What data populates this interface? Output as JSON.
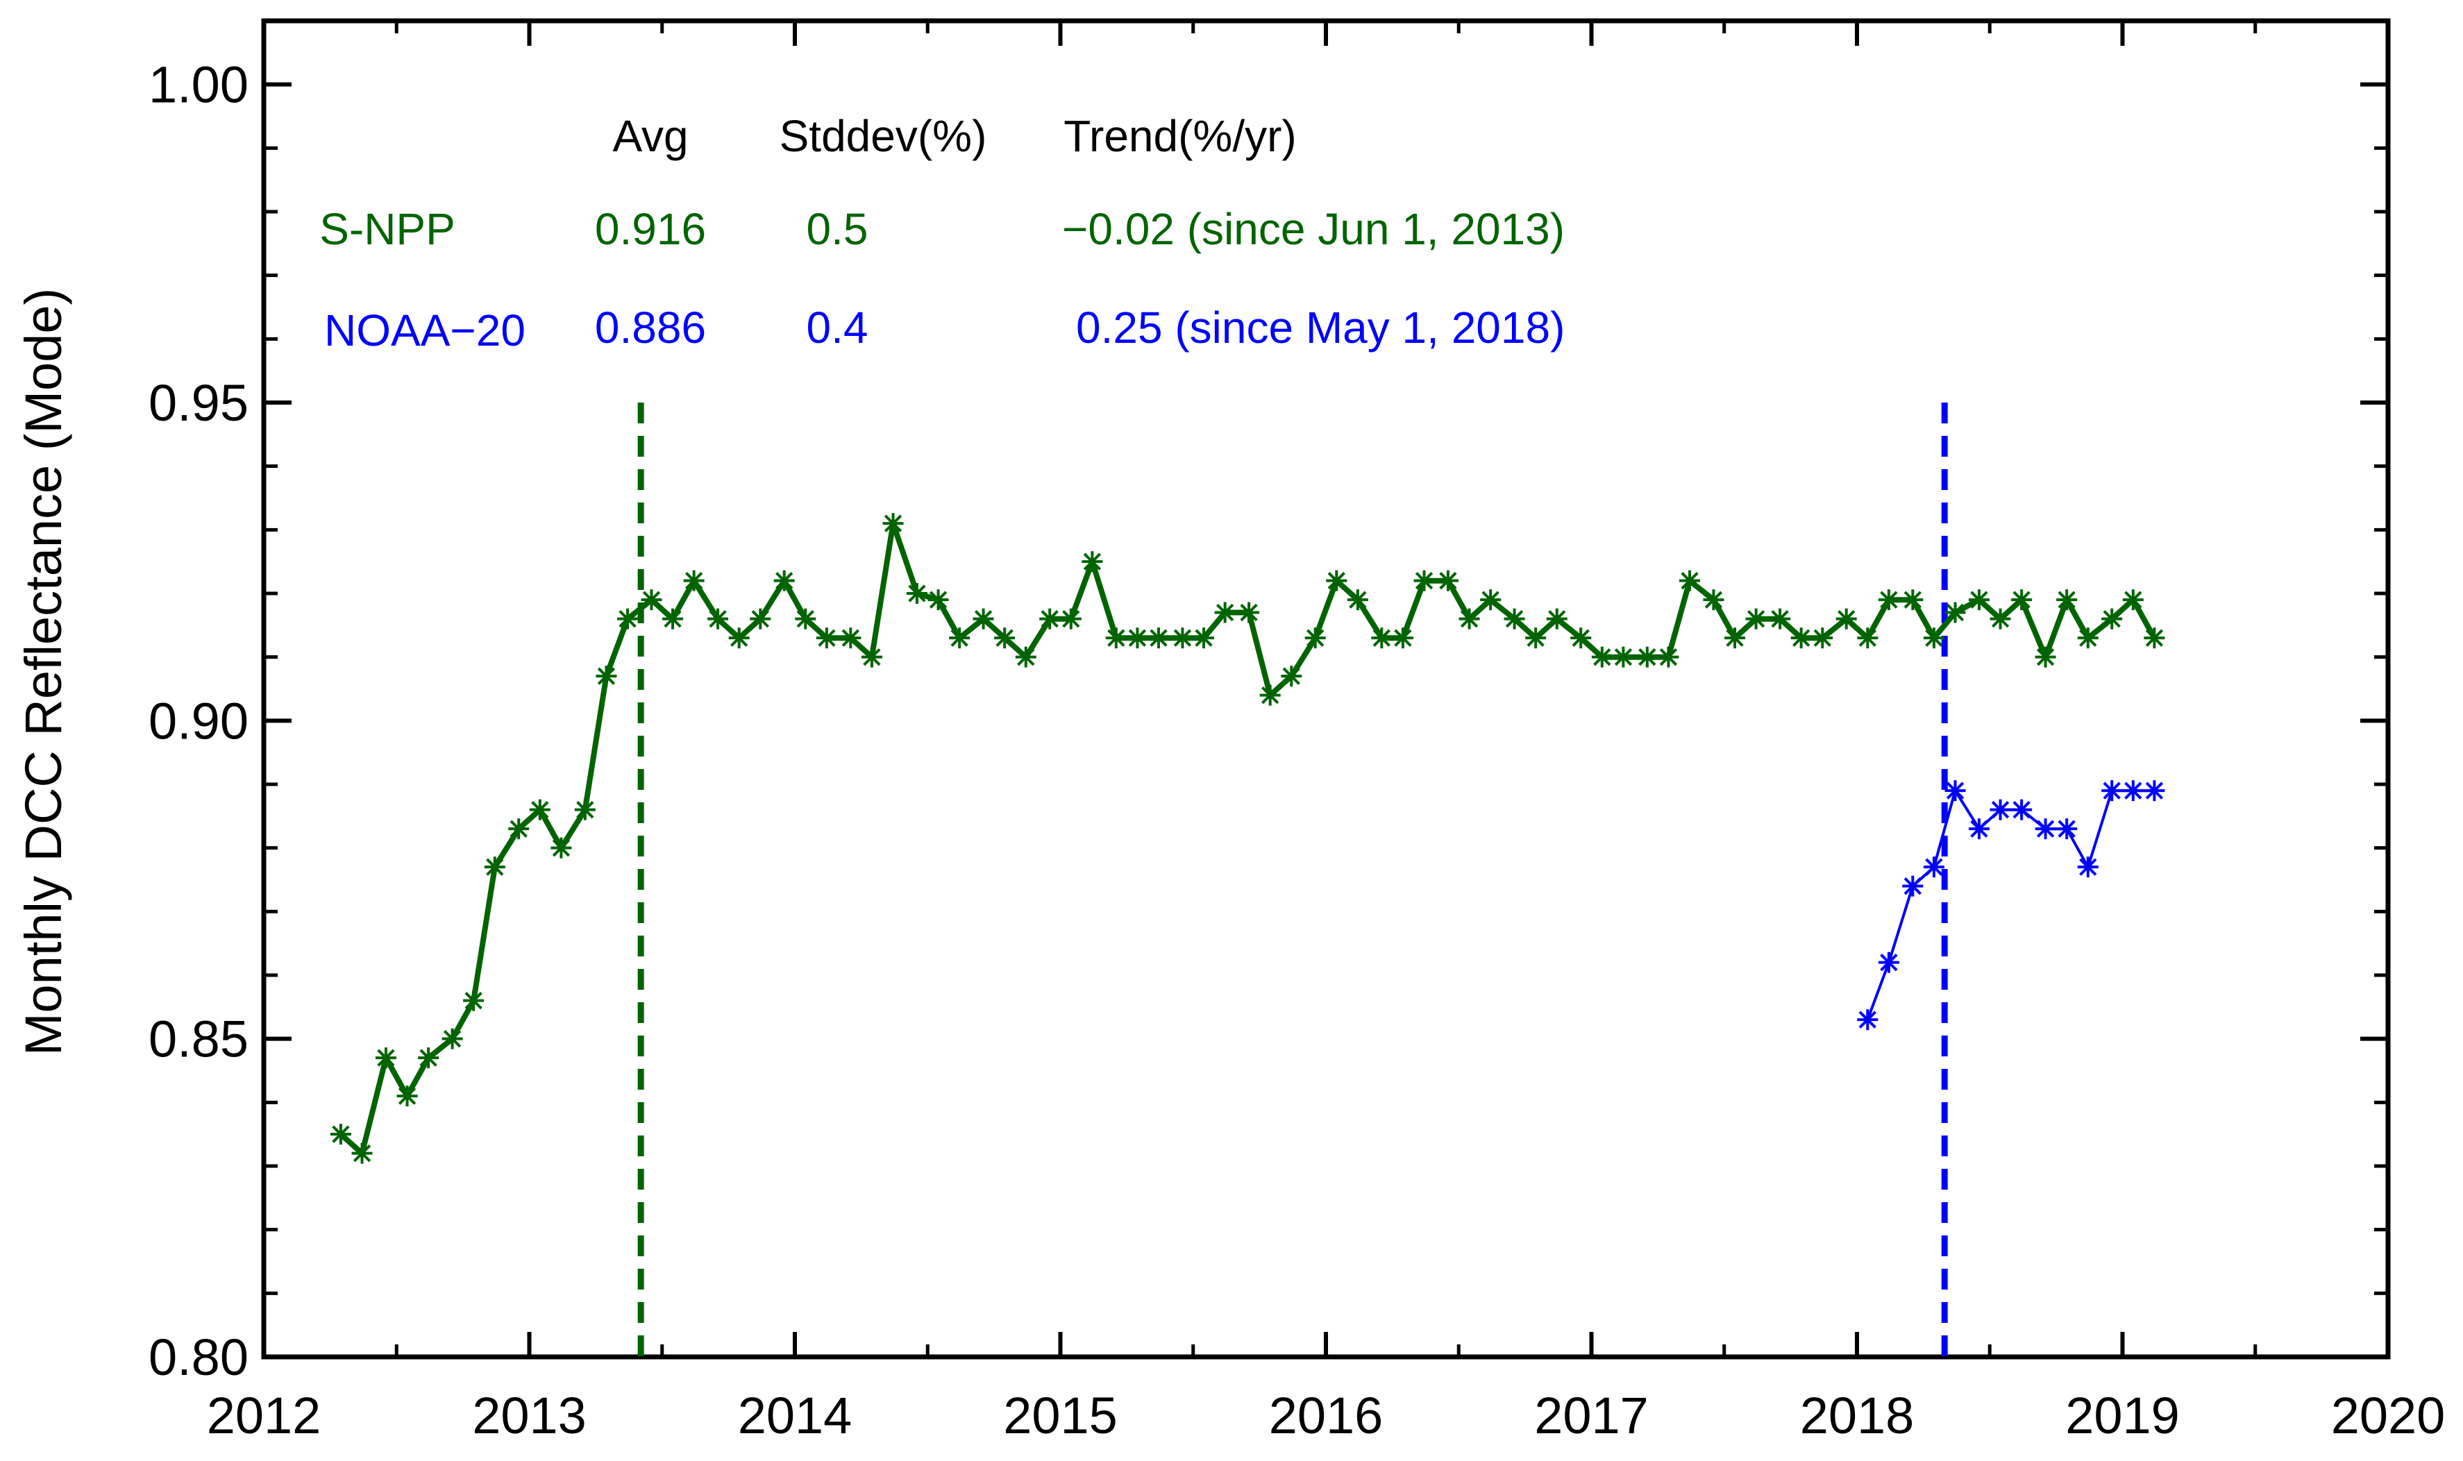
{
  "chart_data": {
    "type": "line",
    "title": "",
    "xlabel": "",
    "ylabel": "Monthly DCC Reflectance (Mode)",
    "xlim": [
      2012,
      2020
    ],
    "ylim": [
      0.8,
      1.01
    ],
    "x_ticks": [
      2012,
      2013,
      2014,
      2015,
      2016,
      2017,
      2018,
      2019,
      2020
    ],
    "x_tick_labels": [
      "2012",
      "2013",
      "2014",
      "2015",
      "2016",
      "2017",
      "2018",
      "2019",
      "2020"
    ],
    "y_ticks": [
      0.8,
      0.85,
      0.9,
      0.95,
      1.0
    ],
    "y_tick_labels": [
      "0.80",
      "0.85",
      "0.90",
      "0.95",
      "1.00"
    ],
    "grid": false,
    "series": [
      {
        "name": "S-NPP",
        "color": "#006400",
        "marker": "asterisk",
        "x": [
          2012.29,
          2012.37,
          2012.46,
          2012.54,
          2012.62,
          2012.71,
          2012.79,
          2012.87,
          2012.96,
          2013.04,
          2013.12,
          2013.21,
          2013.29,
          2013.37,
          2013.46,
          2013.54,
          2013.62,
          2013.71,
          2013.79,
          2013.87,
          2013.96,
          2014.04,
          2014.12,
          2014.21,
          2014.29,
          2014.37,
          2014.46,
          2014.54,
          2014.62,
          2014.71,
          2014.79,
          2014.87,
          2014.96,
          2015.04,
          2015.12,
          2015.21,
          2015.29,
          2015.37,
          2015.46,
          2015.54,
          2015.62,
          2015.71,
          2015.79,
          2015.87,
          2015.96,
          2016.04,
          2016.12,
          2016.21,
          2016.29,
          2016.37,
          2016.46,
          2016.54,
          2016.62,
          2016.71,
          2016.79,
          2016.87,
          2016.96,
          2017.04,
          2017.12,
          2017.21,
          2017.29,
          2017.37,
          2017.46,
          2017.54,
          2017.62,
          2017.71,
          2017.79,
          2017.87,
          2017.96,
          2018.04,
          2018.12,
          2018.21,
          2018.29,
          2018.37,
          2018.46,
          2018.54,
          2018.62,
          2018.71,
          2018.79,
          2018.87,
          2018.96,
          2019.04,
          2019.12
        ],
        "values": [
          0.835,
          0.832,
          0.847,
          0.841,
          0.847,
          0.85,
          0.856,
          0.877,
          0.883,
          0.886,
          0.88,
          0.886,
          0.907,
          0.916,
          0.919,
          0.916,
          0.922,
          0.916,
          0.913,
          0.916,
          0.922,
          0.916,
          0.913,
          0.913,
          0.91,
          0.931,
          0.92,
          0.919,
          0.913,
          0.916,
          0.913,
          0.91,
          0.916,
          0.916,
          0.925,
          0.913,
          0.913,
          0.913,
          0.913,
          0.913,
          0.917,
          0.917,
          0.904,
          0.907,
          0.913,
          0.922,
          0.919,
          0.913,
          0.913,
          0.922,
          0.922,
          0.916,
          0.919,
          0.916,
          0.913,
          0.916,
          0.913,
          0.91,
          0.91,
          0.91,
          0.91,
          0.922,
          0.919,
          0.913,
          0.916,
          0.916,
          0.913,
          0.913,
          0.916,
          0.913,
          0.919,
          0.919,
          0.913,
          0.917,
          0.919,
          0.916,
          0.919,
          0.91,
          0.919,
          0.913,
          0.916,
          0.919,
          0.913
        ]
      },
      {
        "name": "NOAA-20",
        "color": "#0000ff",
        "marker": "asterisk",
        "x": [
          2018.04,
          2018.12,
          2018.21,
          2018.29,
          2018.37,
          2018.46,
          2018.54,
          2018.62,
          2018.71,
          2018.79,
          2018.87,
          2018.96,
          2019.04,
          2019.12
        ],
        "values": [
          0.853,
          0.862,
          0.874,
          0.877,
          0.889,
          0.883,
          0.886,
          0.886,
          0.883,
          0.883,
          0.877,
          0.889,
          0.889,
          0.889
        ]
      }
    ],
    "vertical_lines": [
      {
        "x": 2013.42,
        "color": "#006400",
        "style": "dashed",
        "y_range": [
          0.8,
          0.95
        ]
      },
      {
        "x": 2018.33,
        "color": "#0000ff",
        "style": "dashed",
        "y_range": [
          0.8,
          0.95
        ]
      }
    ],
    "stats_table": {
      "headers": {
        "avg": "Avg",
        "stddev": "Stddev(%)",
        "trend": "Trend(%/yr)"
      },
      "rows": [
        {
          "name": "S-NPP",
          "avg": "0.916",
          "stddev": "0.5",
          "trend": "−0.02 (since Jun 1, 2013)",
          "color": "#006400"
        },
        {
          "name": "NOAA−20",
          "avg": "0.886",
          "stddev": "0.4",
          "trend": "0.25 (since May 1, 2018)",
          "color": "#0000ff"
        }
      ]
    }
  }
}
